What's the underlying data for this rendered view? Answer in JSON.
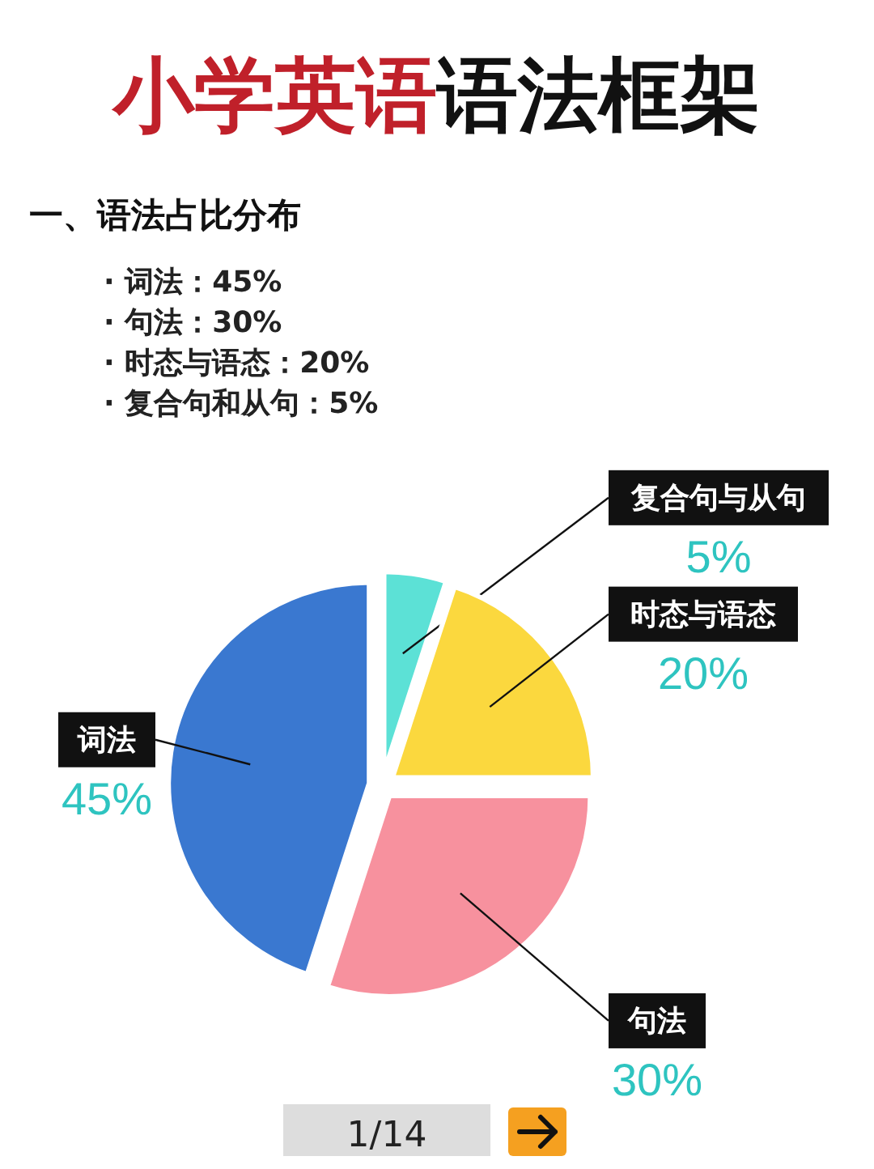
{
  "chart_data": {
    "type": "pie",
    "title": "小学英语语法框架",
    "subtitle": "一、语法占比分布",
    "annotations": [
      "· 词法：45%",
      "· 句法：30%",
      "· 时态与语态：20%",
      "· 复合句和从句：5%",
      "1/14"
    ],
    "categories": [
      "复合句与从句",
      "时态与语态",
      "句法",
      "词法"
    ],
    "values": [
      5,
      20,
      30,
      45
    ],
    "colors": [
      "#5ce1d6",
      "#fbd83e",
      "#f7919e",
      "#3a78d0"
    ],
    "value_labels": [
      "5%",
      "20%",
      "30%",
      "45%"
    ]
  }
}
